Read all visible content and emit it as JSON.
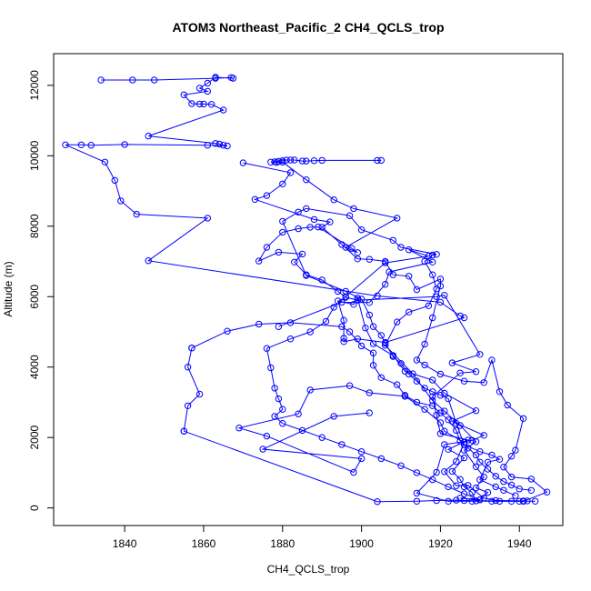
{
  "chart_data": {
    "type": "line",
    "title": "ATOM3 Northeast_Pacific_2 CH4_QCLS_trop",
    "xlabel": "CH4_QCLS_trop",
    "ylabel": "Altitude (m)",
    "xlim": [
      1822,
      1951
    ],
    "ylim": [
      -500,
      12900
    ],
    "xticks": [
      1840,
      1860,
      1880,
      1900,
      1920,
      1940
    ],
    "yticks": [
      0,
      2000,
      4000,
      6000,
      8000,
      10000,
      12000
    ],
    "grid": false,
    "legend": "none",
    "marker": "open-circle",
    "series": [
      {
        "color": "#0000ff",
        "points": [
          [
            1834,
            12150
          ],
          [
            1842,
            12150
          ],
          [
            1847.5,
            12150
          ],
          [
            1863,
            12200
          ],
          [
            1867,
            12220
          ],
          [
            1867.5,
            12200
          ],
          [
            1863,
            12230
          ],
          [
            1861,
            12060
          ],
          [
            1859,
            11920
          ],
          [
            1861,
            11830
          ],
          [
            1855,
            11730
          ],
          [
            1857,
            11480
          ],
          [
            1859,
            11470
          ],
          [
            1860,
            11470
          ],
          [
            1862,
            11460
          ],
          [
            1865,
            11300
          ],
          [
            1846,
            10560
          ],
          [
            1863,
            10350
          ],
          [
            1864,
            10330
          ],
          [
            1865,
            10300
          ],
          [
            1866,
            10280
          ],
          [
            1861,
            10300
          ],
          [
            1840,
            10320
          ],
          [
            1831.5,
            10300
          ],
          [
            1829,
            10310
          ],
          [
            1825,
            10310
          ],
          [
            1835,
            9820
          ],
          [
            1837.5,
            9300
          ],
          [
            1839,
            8720
          ],
          [
            1843,
            8340
          ],
          [
            1861,
            8230
          ],
          [
            1846,
            7020
          ],
          [
            1904,
            6020
          ],
          [
            1920,
            5840
          ],
          [
            1925,
            5450
          ],
          [
            1926,
            5400
          ],
          [
            1906,
            4700
          ],
          [
            1899,
            4800
          ],
          [
            1895.5,
            4720
          ],
          [
            1895.5,
            4820
          ],
          [
            1895.5,
            5330
          ],
          [
            1894,
            5880
          ],
          [
            1898,
            5780
          ],
          [
            1899,
            5960
          ],
          [
            1901,
            5110
          ],
          [
            1903,
            4660
          ],
          [
            1908,
            4330
          ],
          [
            1911,
            3880
          ],
          [
            1918,
            3630
          ],
          [
            1921,
            3260
          ],
          [
            1929,
            2760
          ],
          [
            1923,
            2460
          ],
          [
            1931,
            2060
          ],
          [
            1928,
            1920
          ],
          [
            1921,
            1800
          ],
          [
            1919,
            1010
          ],
          [
            1914,
            420
          ],
          [
            1922,
            190
          ],
          [
            1928,
            190
          ],
          [
            1933,
            190
          ],
          [
            1940,
            190
          ],
          [
            1941,
            190
          ],
          [
            1944,
            190
          ]
        ]
      },
      {
        "color": "#0000ff",
        "points": [
          [
            1904,
            9870
          ],
          [
            1905,
            9870
          ],
          [
            1890,
            9870
          ],
          [
            1888,
            9860
          ],
          [
            1886,
            9850
          ],
          [
            1885,
            9850
          ],
          [
            1883,
            9880
          ],
          [
            1882,
            9880
          ],
          [
            1881,
            9880
          ],
          [
            1880,
            9860
          ],
          [
            1879,
            9840
          ],
          [
            1878,
            9830
          ],
          [
            1877,
            9820
          ],
          [
            1878.5,
            9810
          ],
          [
            1880,
            9820
          ],
          [
            1886,
            9320
          ],
          [
            1893,
            8750
          ],
          [
            1898,
            8500
          ],
          [
            1909,
            8230
          ],
          [
            1896,
            7400
          ],
          [
            1899,
            7250
          ],
          [
            1897.5,
            7370
          ],
          [
            1889,
            7980
          ],
          [
            1887,
            7970
          ],
          [
            1884,
            7930
          ],
          [
            1880,
            7830
          ],
          [
            1876,
            7400
          ],
          [
            1874,
            7010
          ],
          [
            1879,
            7260
          ],
          [
            1885,
            7210
          ],
          [
            1883,
            6980
          ],
          [
            1886,
            6620
          ],
          [
            1890,
            6470
          ],
          [
            1894,
            6150
          ],
          [
            1896,
            5980
          ],
          [
            1899,
            5900
          ],
          [
            1919,
            6000
          ],
          [
            1921,
            6040
          ],
          [
            1930,
            4360
          ],
          [
            1923,
            4120
          ],
          [
            1929,
            3870
          ],
          [
            1925,
            3830
          ],
          [
            1918,
            3160
          ],
          [
            1919,
            2640
          ],
          [
            1920,
            2110
          ],
          [
            1927,
            1930
          ],
          [
            1922,
            1660
          ],
          [
            1926,
            1420
          ],
          [
            1923,
            1040
          ],
          [
            1925,
            810
          ],
          [
            1926,
            600
          ],
          [
            1928,
            440
          ],
          [
            1929,
            200
          ],
          [
            1941,
            200
          ],
          [
            1942,
            200
          ],
          [
            1934,
            210
          ]
        ]
      },
      {
        "color": "#0000ff",
        "points": [
          [
            1870,
            9800
          ],
          [
            1882,
            9520
          ],
          [
            1880,
            9200
          ],
          [
            1876,
            8870
          ],
          [
            1873,
            8760
          ],
          [
            1888,
            8190
          ],
          [
            1892,
            8120
          ],
          [
            1890,
            7970
          ],
          [
            1895,
            7480
          ],
          [
            1899,
            7070
          ],
          [
            1902,
            7060
          ],
          [
            1906,
            7000
          ],
          [
            1908,
            6620
          ],
          [
            1912,
            6580
          ],
          [
            1914,
            6200
          ],
          [
            1920,
            6500
          ],
          [
            1920,
            6300
          ],
          [
            1918,
            5400
          ],
          [
            1916,
            4650
          ],
          [
            1914,
            4200
          ],
          [
            1916,
            4060
          ],
          [
            1920,
            3800
          ],
          [
            1926,
            3600
          ],
          [
            1931,
            3560
          ],
          [
            1933,
            4200
          ],
          [
            1935,
            3300
          ],
          [
            1937,
            2920
          ],
          [
            1941,
            2540
          ],
          [
            1939,
            1640
          ],
          [
            1938,
            1470
          ],
          [
            1936,
            1160
          ],
          [
            1938,
            880
          ],
          [
            1943,
            820
          ],
          [
            1947,
            450
          ],
          [
            1941,
            190
          ],
          [
            1938,
            190
          ],
          [
            1935,
            190
          ],
          [
            1931,
            280
          ],
          [
            1927,
            640
          ],
          [
            1924,
            630
          ],
          [
            1921,
            1030
          ],
          [
            1924,
            1320
          ],
          [
            1926,
            1860
          ],
          [
            1921,
            2180
          ],
          [
            1920,
            2420
          ],
          [
            1916,
            2800
          ],
          [
            1911,
            3170
          ],
          [
            1902,
            3270
          ],
          [
            1897,
            3470
          ],
          [
            1887,
            3350
          ],
          [
            1884,
            2670
          ],
          [
            1869,
            2270
          ],
          [
            1876,
            2040
          ],
          [
            1898,
            1010
          ],
          [
            1900,
            1400
          ],
          [
            1875,
            1670
          ],
          [
            1893,
            2600
          ],
          [
            1902,
            2700
          ]
        ]
      },
      {
        "color": "#0000ff",
        "points": [
          [
            1855,
            2180
          ],
          [
            1904,
            180
          ],
          [
            1914,
            190
          ],
          [
            1919,
            210
          ],
          [
            1924,
            220
          ],
          [
            1926,
            210
          ],
          [
            1930,
            230
          ],
          [
            1932,
            440
          ],
          [
            1929,
            570
          ],
          [
            1931,
            880
          ],
          [
            1929,
            1170
          ],
          [
            1926,
            1640
          ],
          [
            1929,
            1880
          ],
          [
            1925,
            2340
          ],
          [
            1921,
            2750
          ],
          [
            1918,
            3050
          ],
          [
            1913,
            3810
          ],
          [
            1906,
            4620
          ],
          [
            1909,
            5280
          ],
          [
            1912,
            5560
          ],
          [
            1917,
            5740
          ],
          [
            1919,
            6220
          ],
          [
            1918,
            6620
          ],
          [
            1916,
            7000
          ],
          [
            1918,
            7180
          ],
          [
            1919,
            7200
          ],
          [
            1910,
            7400
          ],
          [
            1908,
            7600
          ],
          [
            1900,
            7900
          ],
          [
            1897,
            8300
          ],
          [
            1886,
            8500
          ],
          [
            1884,
            8400
          ],
          [
            1880,
            8140
          ],
          [
            1886,
            6600
          ],
          [
            1896,
            6150
          ],
          [
            1900,
            5930
          ],
          [
            1902,
            5480
          ],
          [
            1903,
            5150
          ],
          [
            1905,
            4900
          ],
          [
            1906,
            4680
          ],
          [
            1908,
            4300
          ],
          [
            1910,
            4100
          ],
          [
            1912,
            3800
          ],
          [
            1914,
            3600
          ],
          [
            1916,
            3400
          ],
          [
            1918,
            3300
          ],
          [
            1920,
            3200
          ],
          [
            1922,
            3100
          ],
          [
            1924,
            2400
          ],
          [
            1926,
            1800
          ],
          [
            1930,
            1600
          ],
          [
            1933,
            1500
          ],
          [
            1935,
            1380
          ],
          [
            1932,
            1300
          ],
          [
            1930,
            800
          ],
          [
            1934,
            600
          ],
          [
            1936,
            500
          ],
          [
            1939,
            350
          ]
        ]
      },
      {
        "color": "#0000ff",
        "points": [
          [
            1879,
            5150
          ],
          [
            1895,
            5840
          ],
          [
            1902,
            5830
          ],
          [
            1906,
            6350
          ],
          [
            1907,
            6700
          ],
          [
            1918,
            6980
          ],
          [
            1912,
            7330
          ],
          [
            1917,
            7150
          ],
          [
            1906,
            6960
          ],
          [
            1896,
            6000
          ],
          [
            1893,
            5700
          ],
          [
            1891,
            5300
          ],
          [
            1887,
            5000
          ],
          [
            1882,
            4800
          ],
          [
            1876,
            4530
          ],
          [
            1877,
            3980
          ],
          [
            1878,
            3400
          ],
          [
            1879,
            3100
          ],
          [
            1880,
            2800
          ],
          [
            1878,
            2600
          ],
          [
            1880,
            2400
          ],
          [
            1885,
            2200
          ],
          [
            1890,
            2000
          ],
          [
            1895,
            1800
          ],
          [
            1900,
            1600
          ],
          [
            1905,
            1400
          ],
          [
            1910,
            1200
          ],
          [
            1914,
            1000
          ],
          [
            1918,
            800
          ],
          [
            1922,
            600
          ],
          [
            1926,
            400
          ],
          [
            1930,
            230
          ],
          [
            1925,
            280
          ]
        ]
      },
      {
        "color": "#0000ff",
        "points": [
          [
            1857,
            4540
          ],
          [
            1866,
            5020
          ],
          [
            1874,
            5220
          ],
          [
            1882,
            5260
          ],
          [
            1895,
            5150
          ],
          [
            1897,
            5000
          ],
          [
            1900,
            4600
          ],
          [
            1903,
            4400
          ],
          [
            1903,
            4050
          ],
          [
            1905,
            3700
          ],
          [
            1909,
            3500
          ],
          [
            1911,
            3200
          ],
          [
            1914,
            3000
          ],
          [
            1918,
            2900
          ],
          [
            1920,
            2700
          ],
          [
            1922,
            2500
          ],
          [
            1924,
            2200
          ],
          [
            1925,
            1900
          ],
          [
            1927,
            1700
          ],
          [
            1929,
            1500
          ],
          [
            1930,
            1300
          ],
          [
            1932,
            1100
          ],
          [
            1934,
            900
          ],
          [
            1936,
            750
          ],
          [
            1938,
            650
          ],
          [
            1940,
            540
          ],
          [
            1943,
            500
          ]
        ]
      },
      {
        "color": "#0000ff",
        "points": [
          [
            1857,
            4540
          ],
          [
            1856,
            4000
          ],
          [
            1859,
            3230
          ],
          [
            1856,
            2900
          ],
          [
            1855,
            2180
          ]
        ]
      }
    ]
  }
}
